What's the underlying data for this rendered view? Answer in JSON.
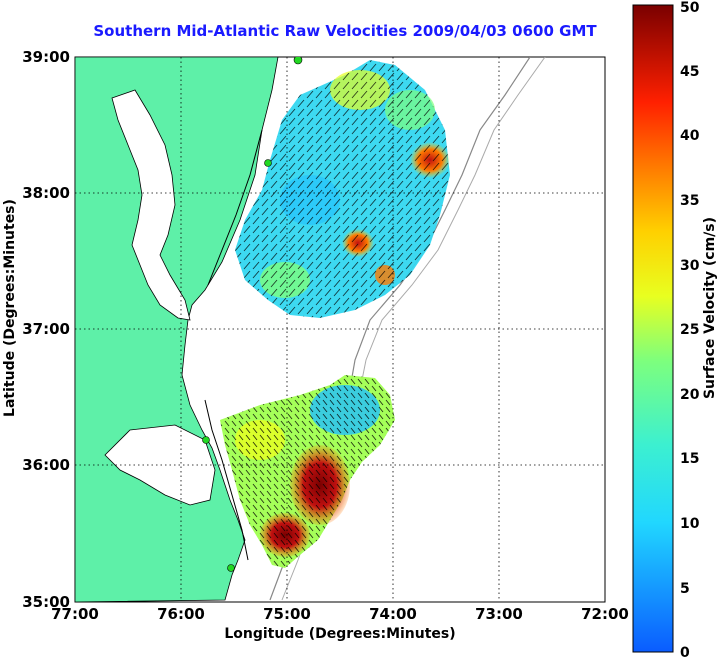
{
  "title": "Southern Mid-Atlantic Raw Velocities 2009/04/03 0600 GMT",
  "axes": {
    "xlabel": "Longitude (Degrees:Minutes)",
    "ylabel": "Latitude (Degrees:Minutes)",
    "xticks": [
      "77:00",
      "76:00",
      "75:00",
      "74:00",
      "73:00",
      "72:00"
    ],
    "yticks": [
      "39:00",
      "38:00",
      "37:00",
      "36:00",
      "35:00"
    ]
  },
  "colorbar": {
    "label": "Surface Velocity (cm/s)",
    "ticks": [
      "0",
      "5",
      "10",
      "15",
      "20",
      "25",
      "30",
      "35",
      "40",
      "45",
      "50"
    ],
    "min": 0,
    "max": 50
  },
  "colors": {
    "land": "#5ef0a8",
    "title": "#1a1aff",
    "station": "#22d822"
  },
  "map": {
    "lon_range": [
      -77,
      -72
    ],
    "lat_range": [
      35,
      39
    ],
    "grid": "dotted"
  }
}
